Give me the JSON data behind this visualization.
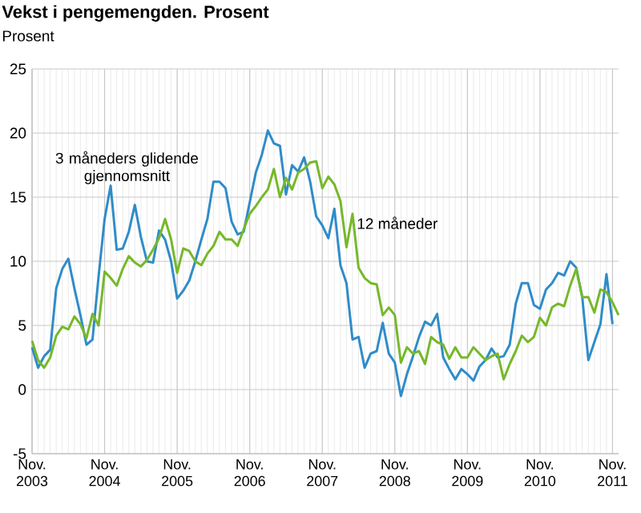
{
  "chart_data": {
    "type": "line",
    "title": "Vekst i pengemengden. Prosent",
    "ylabel": "Prosent",
    "xlim": [
      "2003-11",
      "2011-12"
    ],
    "ylim": [
      -5,
      25
    ],
    "yticks": [
      -5,
      0,
      5,
      10,
      15,
      20,
      25
    ],
    "xticks": [
      {
        "value": "2003-11",
        "label": "Nov. 2003"
      },
      {
        "value": "2004-11",
        "label": "Nov. 2004"
      },
      {
        "value": "2005-11",
        "label": "Nov. 2005"
      },
      {
        "value": "2006-11",
        "label": "Nov. 2006"
      },
      {
        "value": "2007-11",
        "label": "Nov. 2007"
      },
      {
        "value": "2008-11",
        "label": "Nov. 2008"
      },
      {
        "value": "2009-11",
        "label": "Nov. 2009"
      },
      {
        "value": "2010-11",
        "label": "Nov. 2010"
      },
      {
        "value": "2011-11",
        "label": "Nov. 2011"
      }
    ],
    "grid": true,
    "legend": false,
    "marker": "none",
    "line_style": "solid",
    "series": [
      {
        "name": "3 måneders glidende gjennomsnitt",
        "color": "#2f8cc9",
        "x": [
          "2003-11",
          "2003-12",
          "2004-01",
          "2004-02",
          "2004-03",
          "2004-04",
          "2004-05",
          "2004-06",
          "2004-07",
          "2004-08",
          "2004-09",
          "2004-10",
          "2004-11",
          "2004-12",
          "2005-01",
          "2005-02",
          "2005-03",
          "2005-04",
          "2005-05",
          "2005-06",
          "2005-07",
          "2005-08",
          "2005-09",
          "2005-10",
          "2005-11",
          "2005-12",
          "2006-01",
          "2006-02",
          "2006-03",
          "2006-04",
          "2006-05",
          "2006-06",
          "2006-07",
          "2006-08",
          "2006-09",
          "2006-10",
          "2006-11",
          "2006-12",
          "2007-01",
          "2007-02",
          "2007-03",
          "2007-04",
          "2007-05",
          "2007-06",
          "2007-07",
          "2007-08",
          "2007-09",
          "2007-10",
          "2007-11",
          "2007-12",
          "2008-01",
          "2008-02",
          "2008-03",
          "2008-04",
          "2008-05",
          "2008-06",
          "2008-07",
          "2008-08",
          "2008-09",
          "2008-10",
          "2008-11",
          "2008-12",
          "2009-01",
          "2009-02",
          "2009-03",
          "2009-04",
          "2009-05",
          "2009-06",
          "2009-07",
          "2009-08",
          "2009-09",
          "2009-10",
          "2009-11",
          "2009-12",
          "2010-01",
          "2010-02",
          "2010-03",
          "2010-04",
          "2010-05",
          "2010-06",
          "2010-07",
          "2010-08",
          "2010-09",
          "2010-10",
          "2010-11",
          "2010-12",
          "2011-01",
          "2011-02",
          "2011-03",
          "2011-04",
          "2011-05",
          "2011-06",
          "2011-07",
          "2011-08",
          "2011-09",
          "2011-10",
          "2011-11"
        ],
        "values": [
          3.3,
          1.7,
          2.6,
          3.1,
          7.9,
          9.4,
          10.2,
          7.9,
          5.8,
          3.5,
          3.9,
          8.8,
          13.3,
          15.9,
          10.9,
          11.0,
          12.3,
          14.4,
          11.9,
          10.0,
          9.9,
          12.4,
          11.7,
          10.0,
          7.1,
          7.7,
          8.5,
          10.0,
          11.7,
          13.3,
          16.2,
          16.2,
          15.7,
          13.1,
          12.1,
          12.3,
          14.6,
          16.9,
          18.3,
          20.2,
          19.2,
          19.0,
          15.2,
          17.5,
          17.0,
          18.1,
          16.2,
          13.5,
          12.8,
          11.8,
          14.1,
          9.7,
          8.3,
          3.9,
          4.1,
          1.7,
          2.8,
          3.0,
          5.2,
          2.8,
          2.1,
          -0.5,
          1.2,
          2.6,
          4.1,
          5.3,
          5.0,
          5.9,
          2.5,
          1.6,
          0.8,
          1.6,
          1.2,
          0.7,
          1.8,
          2.3,
          3.2,
          2.5,
          2.6,
          3.5,
          6.7,
          8.3,
          8.3,
          6.6,
          6.3,
          7.8,
          8.3,
          9.1,
          8.9,
          10.0,
          9.5,
          7.2,
          2.3,
          3.7,
          5.1,
          9.0,
          5.1
        ]
      },
      {
        "name": "12 måneder",
        "color": "#76b82a",
        "x": [
          "2003-11",
          "2003-12",
          "2004-01",
          "2004-02",
          "2004-03",
          "2004-04",
          "2004-05",
          "2004-06",
          "2004-07",
          "2004-08",
          "2004-09",
          "2004-10",
          "2004-11",
          "2004-12",
          "2005-01",
          "2005-02",
          "2005-03",
          "2005-04",
          "2005-05",
          "2005-06",
          "2005-07",
          "2005-08",
          "2005-09",
          "2005-10",
          "2005-11",
          "2005-12",
          "2006-01",
          "2006-02",
          "2006-03",
          "2006-04",
          "2006-05",
          "2006-06",
          "2006-07",
          "2006-08",
          "2006-09",
          "2006-10",
          "2006-11",
          "2006-12",
          "2007-01",
          "2007-02",
          "2007-03",
          "2007-04",
          "2007-05",
          "2007-06",
          "2007-07",
          "2007-08",
          "2007-09",
          "2007-10",
          "2007-11",
          "2007-12",
          "2008-01",
          "2008-02",
          "2008-03",
          "2008-04",
          "2008-05",
          "2008-06",
          "2008-07",
          "2008-08",
          "2008-09",
          "2008-10",
          "2008-11",
          "2008-12",
          "2009-01",
          "2009-02",
          "2009-03",
          "2009-04",
          "2009-05",
          "2009-06",
          "2009-07",
          "2009-08",
          "2009-09",
          "2009-10",
          "2009-11",
          "2009-12",
          "2010-01",
          "2010-02",
          "2010-03",
          "2010-04",
          "2010-05",
          "2010-06",
          "2010-07",
          "2010-08",
          "2010-09",
          "2010-10",
          "2010-11",
          "2010-12",
          "2011-01",
          "2011-02",
          "2011-03",
          "2011-04",
          "2011-05",
          "2011-06",
          "2011-07",
          "2011-08",
          "2011-09",
          "2011-10",
          "2011-11",
          "2011-12"
        ],
        "values": [
          3.8,
          2.3,
          1.7,
          2.5,
          4.2,
          4.9,
          4.7,
          5.7,
          5.1,
          4.0,
          5.9,
          5.0,
          9.2,
          8.7,
          8.1,
          9.4,
          10.4,
          9.9,
          9.6,
          10.1,
          10.9,
          11.8,
          13.3,
          11.7,
          9.1,
          11.0,
          10.8,
          10.0,
          9.7,
          10.6,
          11.2,
          12.3,
          11.7,
          11.7,
          11.2,
          12.5,
          13.7,
          14.3,
          15.0,
          15.6,
          17.2,
          15.0,
          16.5,
          15.6,
          16.9,
          17.2,
          17.7,
          17.8,
          15.7,
          16.6,
          16.0,
          14.7,
          11.1,
          13.7,
          9.5,
          8.7,
          8.3,
          8.2,
          5.8,
          6.4,
          5.8,
          2.1,
          3.3,
          2.8,
          3.0,
          2.0,
          4.1,
          3.7,
          3.5,
          2.4,
          3.3,
          2.5,
          2.5,
          3.3,
          2.8,
          2.3,
          2.6,
          2.8,
          0.8,
          2.0,
          3.0,
          4.2,
          3.7,
          4.1,
          5.6,
          5.0,
          6.4,
          6.7,
          6.5,
          8.1,
          9.4,
          7.2,
          7.2,
          6.0,
          7.8,
          7.6,
          6.8,
          5.8
        ]
      }
    ]
  }
}
